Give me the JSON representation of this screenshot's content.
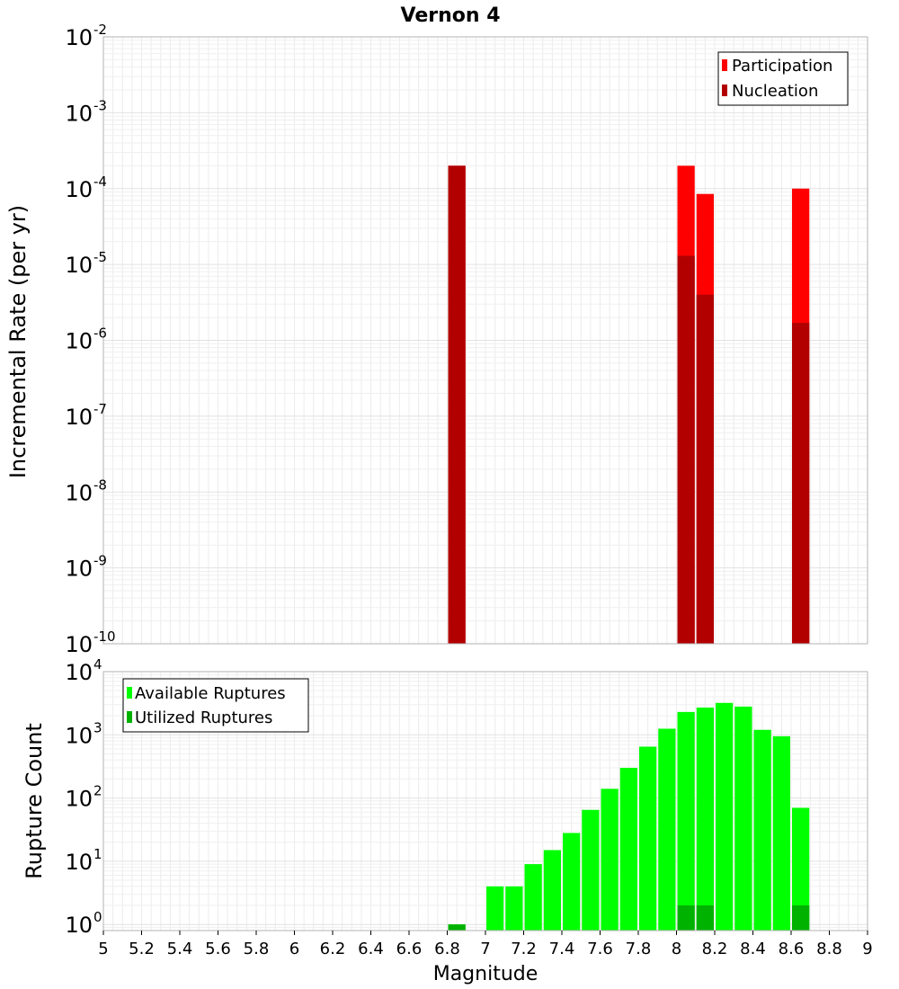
{
  "chart_data": [
    {
      "type": "bar",
      "title": "Vernon 4",
      "ylabel": "Incremental Rate (per yr)",
      "xlabel": "",
      "yscale": "log",
      "ylim": [
        1e-10,
        0.01
      ],
      "xlim": [
        5,
        9
      ],
      "y_ticks": [
        {
          "base": "10",
          "exp": "-2"
        },
        {
          "base": "10",
          "exp": "-3"
        },
        {
          "base": "10",
          "exp": "-4"
        },
        {
          "base": "10",
          "exp": "-5"
        },
        {
          "base": "10",
          "exp": "-6"
        },
        {
          "base": "10",
          "exp": "-7"
        },
        {
          "base": "10",
          "exp": "-8"
        },
        {
          "base": "10",
          "exp": "-9"
        },
        {
          "base": "10",
          "exp": "-10"
        }
      ],
      "legend_position": "top-right",
      "grid": true,
      "bar_width": 0.1,
      "series": [
        {
          "name": "Participation",
          "color": "#ff0000",
          "x": [
            6.85,
            8.05,
            8.15,
            8.65
          ],
          "values": [
            0.0002,
            0.0002,
            8.5e-05,
            0.0001
          ]
        },
        {
          "name": "Nucleation",
          "color": "#b20000",
          "x": [
            6.85,
            8.05,
            8.15,
            8.65
          ],
          "values": [
            0.0002,
            1.3e-05,
            4e-06,
            1.7e-06
          ]
        }
      ]
    },
    {
      "type": "bar",
      "title": "",
      "ylabel": "Rupture Count",
      "xlabel": "Magnitude",
      "yscale": "log",
      "ylim": [
        0.8,
        10000
      ],
      "xlim": [
        5,
        9
      ],
      "y_ticks": [
        {
          "base": "10",
          "exp": "4"
        },
        {
          "base": "10",
          "exp": "3"
        },
        {
          "base": "10",
          "exp": "2"
        },
        {
          "base": "10",
          "exp": "1"
        },
        {
          "base": "10",
          "exp": "0"
        }
      ],
      "x_ticks": [
        "5",
        "5.2",
        "5.4",
        "5.6",
        "5.8",
        "6",
        "6.2",
        "6.4",
        "6.6",
        "6.8",
        "7",
        "7.2",
        "7.4",
        "7.6",
        "7.8",
        "8",
        "8.2",
        "8.4",
        "8.6",
        "8.8",
        "9"
      ],
      "legend_position": "top-left",
      "grid": true,
      "bar_width": 0.1,
      "series": [
        {
          "name": "Available Ruptures",
          "color": "#00ff00",
          "x": [
            6.85,
            7.05,
            7.15,
            7.25,
            7.35,
            7.45,
            7.55,
            7.65,
            7.75,
            7.85,
            7.95,
            8.05,
            8.15,
            8.25,
            8.35,
            8.45,
            8.55,
            8.65
          ],
          "values": [
            1,
            4,
            4,
            9,
            15,
            28,
            65,
            140,
            300,
            650,
            1250,
            2300,
            2700,
            3200,
            2800,
            1200,
            950,
            70
          ]
        },
        {
          "name": "Utilized Ruptures",
          "color": "#00b200",
          "x": [
            6.85,
            8.05,
            8.15,
            8.65
          ],
          "values": [
            1,
            2,
            2,
            2
          ]
        }
      ]
    }
  ]
}
